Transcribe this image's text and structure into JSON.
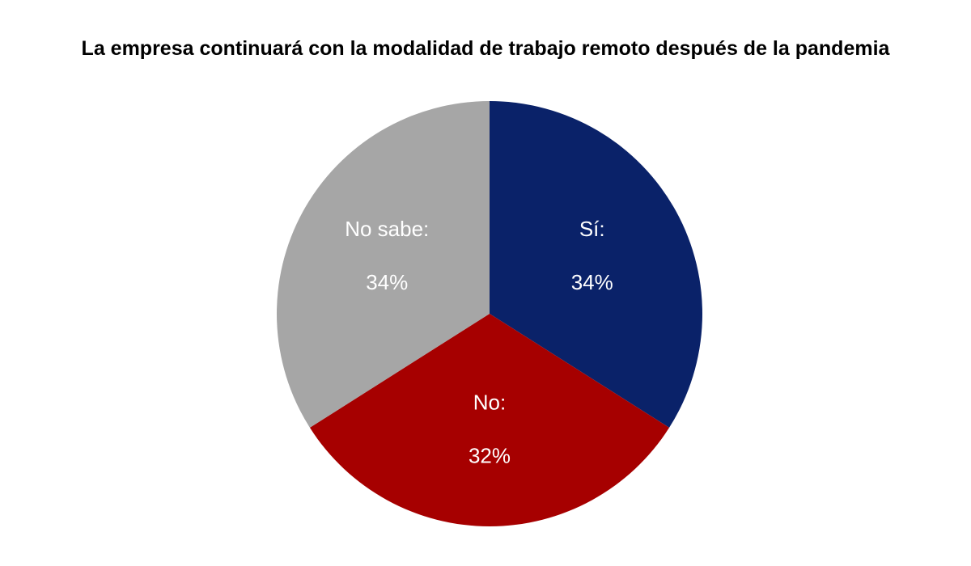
{
  "chart_data": {
    "type": "pie",
    "title": "La empresa continuará con la modalidad de trabajo remoto después de la pandemia",
    "slices": [
      {
        "category": "Sí:",
        "value": 34,
        "value_label": "34%",
        "color": "#0a2269"
      },
      {
        "category": "No:",
        "value": 32,
        "value_label": "32%",
        "color": "#a60000"
      },
      {
        "category": "No sabe:",
        "value": 34,
        "value_label": "34%",
        "color": "#a6a6a6"
      }
    ],
    "start_angle": "12 o'clock",
    "direction": "clockwise",
    "legend": "none"
  }
}
